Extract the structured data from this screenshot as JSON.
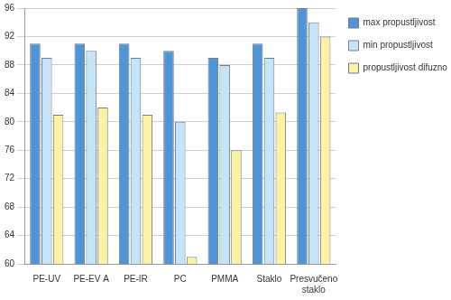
{
  "chart_data": {
    "type": "bar",
    "categories": [
      "PE-UV",
      "PE-EV A",
      "PE-IR",
      "PC",
      "PMMA",
      "Staklo",
      "Presvučeno staklo"
    ],
    "series": [
      {
        "name": "max propustljivost",
        "color": "#4f94d4",
        "values": [
          91,
          91,
          91,
          90,
          89,
          91,
          96
        ]
      },
      {
        "name": "min propustljivost",
        "color": "#c6e3f7",
        "values": [
          89,
          90,
          89,
          80,
          88,
          89,
          94
        ]
      },
      {
        "name": "propustljivost difuznog zračenja",
        "color": "#fcf1a4",
        "values": [
          81,
          82,
          81,
          61,
          76,
          81.3,
          92
        ]
      }
    ],
    "ylim": [
      60,
      96
    ],
    "yticks": [
      60,
      64,
      68,
      72,
      76,
      80,
      84,
      88,
      92,
      96
    ],
    "grid": true,
    "legend": "right"
  }
}
